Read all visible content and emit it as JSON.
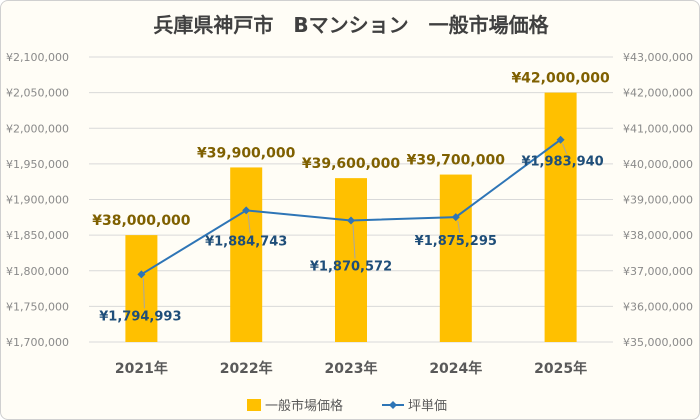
{
  "chart_data": {
    "type": "bar+line",
    "title": "兵庫県神戸市　Bマンション　一般市場価格",
    "categories": [
      "2021年",
      "2022年",
      "2023年",
      "2024年",
      "2025年"
    ],
    "series": [
      {
        "name": "一般市場価格",
        "type": "bar",
        "axis": "right",
        "values": [
          38000000,
          39900000,
          39600000,
          39700000,
          42000000
        ],
        "labels": [
          "¥38,000,000",
          "¥39,900,000",
          "¥39,600,000",
          "¥39,700,000",
          "¥42,000,000"
        ],
        "color": "#ffc000"
      },
      {
        "name": "坪単価",
        "type": "line",
        "axis": "left",
        "values": [
          1794993,
          1884743,
          1870572,
          1875295,
          1983940
        ],
        "labels": [
          "¥1,794,993",
          "¥1,884,743",
          "¥1,870,572",
          "¥1,875,295",
          "¥1,983,940"
        ],
        "color": "#2e75b6"
      }
    ],
    "left_axis": {
      "ylim": [
        1700000,
        2100000
      ],
      "ticks": [
        "¥1,700,000",
        "¥1,750,000",
        "¥1,800,000",
        "¥1,850,000",
        "¥1,900,000",
        "¥1,950,000",
        "¥2,000,000",
        "¥2,050,000",
        "¥2,100,000"
      ]
    },
    "right_axis": {
      "ylim": [
        35000000,
        43000000
      ],
      "ticks": [
        "¥35,000,000",
        "¥36,000,000",
        "¥37,000,000",
        "¥38,000,000",
        "¥39,000,000",
        "¥40,000,000",
        "¥41,000,000",
        "¥42,000,000",
        "¥43,000,000"
      ]
    },
    "grid": true,
    "legend_position": "bottom"
  }
}
